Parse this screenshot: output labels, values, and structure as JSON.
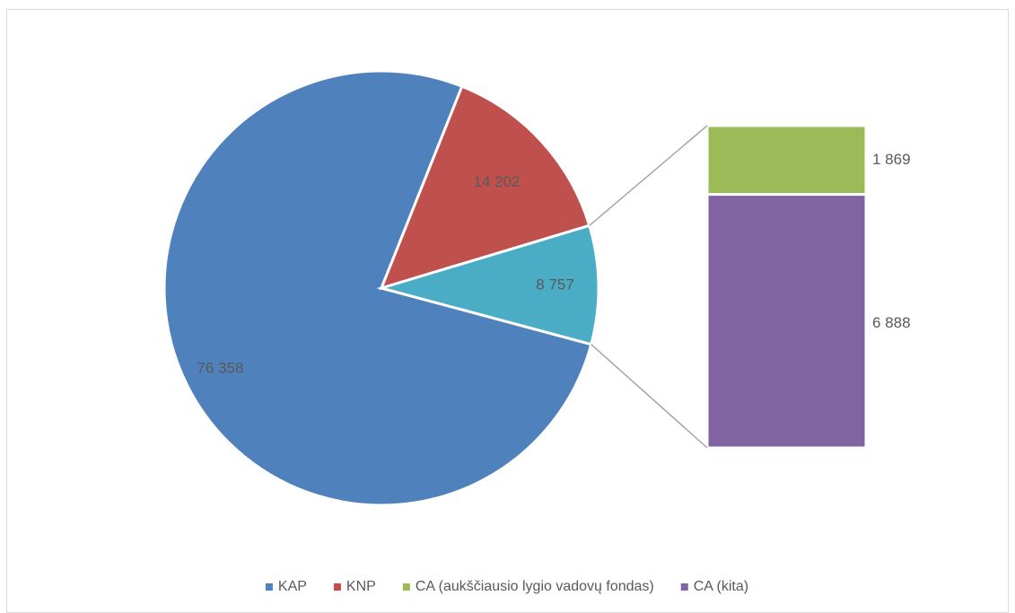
{
  "chart_data": {
    "type": "bar_of_pie",
    "categories": [
      "KAP",
      "KNP",
      null
    ],
    "values": [
      76358,
      14202,
      8757
    ],
    "value_labels": [
      "76 358",
      "14 202",
      "8 757"
    ],
    "colors": [
      "#4f81bd",
      "#c0504d",
      "#4bacc6"
    ],
    "bar_categories": [
      "CA (aukščiausio lygio vadovų fondas)",
      "CA (kita)"
    ],
    "bar_values": [
      1869,
      6888
    ],
    "bar_value_labels": [
      "1 869",
      "6 888"
    ],
    "bar_colors": [
      "#9bbb59",
      "#8064a2"
    ],
    "legend": "bottom"
  }
}
